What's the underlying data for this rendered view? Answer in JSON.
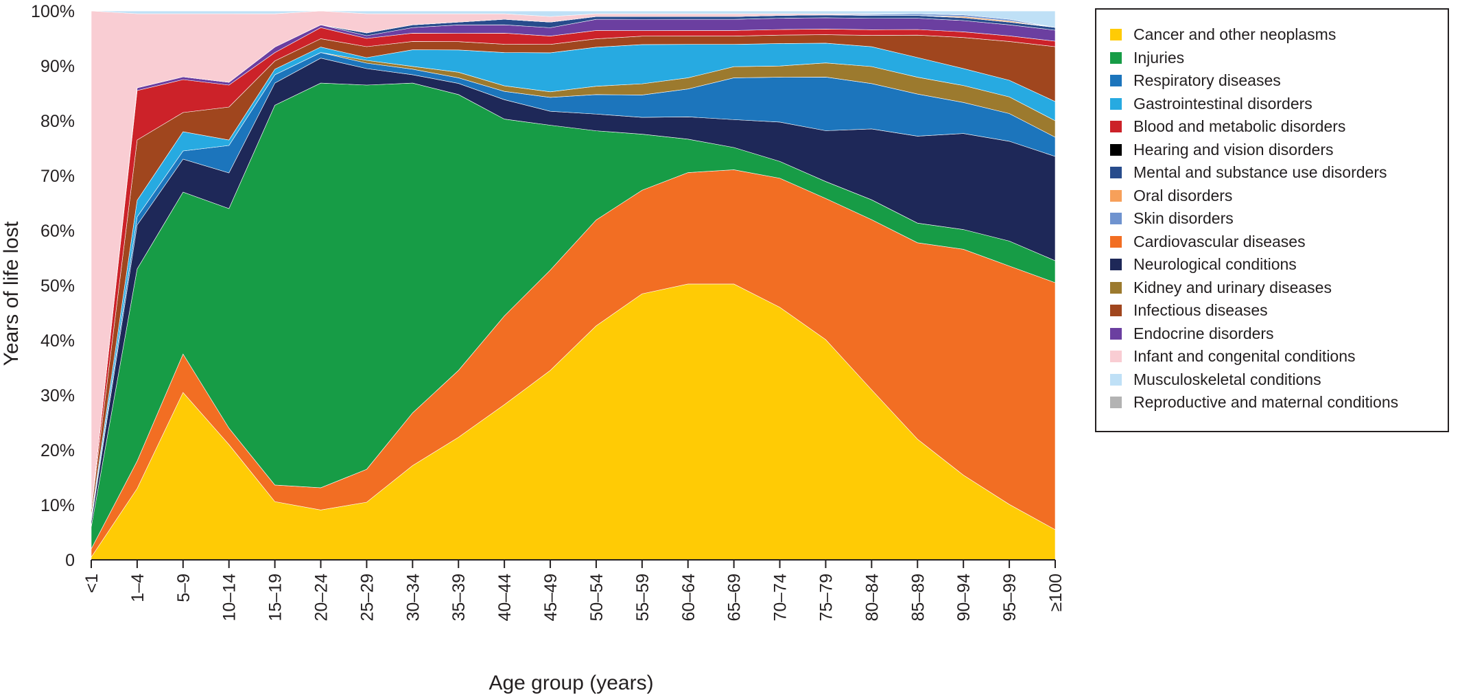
{
  "chart_data": {
    "type": "area",
    "stacked": true,
    "normalized": true,
    "xlabel": "Age group (years)",
    "ylabel": "Years of life lost",
    "ylim": [
      0,
      100
    ],
    "yticks": [
      0,
      10,
      20,
      30,
      40,
      50,
      60,
      70,
      80,
      90,
      100
    ],
    "ytick_labels": [
      "0",
      "10%",
      "20%",
      "30%",
      "40%",
      "50%",
      "60%",
      "70%",
      "80%",
      "90%",
      "100%"
    ],
    "categories": [
      "<1",
      "1–4",
      "5–9",
      "10–14",
      "15–19",
      "20–24",
      "25–29",
      "30–34",
      "35–39",
      "40–44",
      "45–49",
      "50–54",
      "55–59",
      "60–64",
      "65–69",
      "70–74",
      "75–79",
      "80–84",
      "85–89",
      "90–94",
      "95–99",
      "≥100"
    ],
    "grid": false,
    "legend_position": "right",
    "series": [
      {
        "name": "Cancer and other neoplasms",
        "color": "#ffcb05",
        "values": [
          0.5,
          13,
          30.5,
          21,
          10.5,
          9,
          10.5,
          17,
          22,
          28,
          34,
          42,
          47.5,
          49.5,
          49.5,
          45,
          39,
          30,
          21.5,
          15,
          10,
          5.5
        ]
      },
      {
        "name": "Cardiovascular diseases",
        "color": "#f26e23",
        "values": [
          1.5,
          5,
          7,
          3,
          3,
          4,
          6,
          9.5,
          12,
          16,
          18,
          19,
          18.5,
          20,
          20.5,
          23,
          25,
          30,
          35,
          40,
          43,
          45
        ]
      },
      {
        "name": "Injuries",
        "color": "#179c46",
        "values": [
          4,
          35,
          29.5,
          40,
          68.5,
          73,
          70,
          59.5,
          49.5,
          35.5,
          26,
          16,
          10,
          6,
          4,
          3,
          3,
          3.5,
          3.5,
          3.5,
          4.5,
          4
        ]
      },
      {
        "name": "Neurological conditions",
        "color": "#1e2858",
        "values": [
          1,
          8,
          6,
          6.5,
          4,
          4.5,
          3,
          1.5,
          2,
          3.5,
          2.5,
          3,
          3,
          4,
          5,
          7,
          9,
          12.5,
          15.5,
          17,
          18,
          19
        ]
      },
      {
        "name": "Respiratory diseases",
        "color": "#1c75bc",
        "values": [
          0.5,
          1.5,
          1.5,
          5,
          1.5,
          1,
          1,
          1,
          1,
          1.5,
          2.5,
          3.5,
          4,
          5,
          7.5,
          8,
          9.5,
          8,
          7.5,
          5.5,
          5,
          3.5
        ]
      },
      {
        "name": "Kidney and urinary diseases",
        "color": "#9c7a2e",
        "values": [
          0,
          0,
          0,
          0,
          0,
          0,
          0.5,
          0.5,
          1,
          1,
          1,
          1.5,
          2,
          2,
          2,
          2,
          2.5,
          3,
          3,
          3,
          3,
          3
        ]
      },
      {
        "name": "Gastrointestinal disorders",
        "color": "#27aae1",
        "values": [
          0.5,
          3,
          3.5,
          1,
          1,
          1,
          0.5,
          3,
          4,
          6,
          7,
          7,
          7,
          6,
          4,
          4,
          3.5,
          3.5,
          3.5,
          3,
          3,
          3.5
        ]
      },
      {
        "name": "Infectious diseases",
        "color": "#a0461e",
        "values": [
          1,
          11,
          3.5,
          6,
          1.5,
          1.5,
          2,
          1.5,
          1.5,
          1.5,
          1.5,
          1.5,
          1.5,
          1.5,
          1.5,
          1.5,
          1.5,
          2,
          4,
          5.5,
          7,
          10
        ]
      },
      {
        "name": "Blood and metabolic disorders",
        "color": "#cc2229",
        "values": [
          0,
          9,
          6,
          4,
          1.5,
          2,
          1.5,
          1.5,
          1.5,
          2,
          1.5,
          1.5,
          1,
          1,
          1,
          1,
          1,
          1,
          1,
          1,
          1,
          1
        ]
      },
      {
        "name": "Endocrine disorders",
        "color": "#6b3fa0",
        "values": [
          0,
          0.5,
          0.5,
          0.5,
          1,
          0.5,
          0.5,
          1,
          1.5,
          1.5,
          1.5,
          2,
          2,
          2,
          2,
          2,
          2,
          2,
          2,
          2,
          2,
          2
        ]
      },
      {
        "name": "Mental and substance use disorders",
        "color": "#284c8c",
        "values": [
          0,
          0,
          0,
          0,
          0,
          0,
          0.5,
          0.5,
          0.5,
          1,
          1,
          0.5,
          0.5,
          0.5,
          0.5,
          0.5,
          0.5,
          0.5,
          0.5,
          0.5,
          0.5,
          0.5
        ]
      },
      {
        "name": "Hearing and vision disorders",
        "color": "#000000",
        "values": [
          0,
          0,
          0,
          0,
          0,
          0,
          0,
          0,
          0,
          0,
          0,
          0,
          0,
          0,
          0,
          0,
          0,
          0,
          0,
          0,
          0,
          0
        ]
      },
      {
        "name": "Oral disorders",
        "color": "#f7a05a",
        "values": [
          0,
          0,
          0,
          0,
          0,
          0,
          0,
          0,
          0,
          0,
          0,
          0,
          0,
          0,
          0,
          0,
          0,
          0,
          0,
          0.2,
          0.2,
          0
        ]
      },
      {
        "name": "Skin disorders",
        "color": "#6f93cf",
        "values": [
          0,
          0,
          0,
          0,
          0,
          0,
          0,
          0,
          0,
          0,
          0,
          0,
          0,
          0,
          0,
          0,
          0,
          0.2,
          0.3,
          0.3,
          0.3,
          0
        ]
      },
      {
        "name": "Infant and congenital conditions",
        "color": "#f9cdd3",
        "values": [
          91,
          13.5,
          11.5,
          12.5,
          6,
          2.5,
          3.5,
          2,
          1.5,
          1,
          1,
          0.5,
          0.5,
          0.5,
          0.5,
          0.3,
          0.2,
          0.1,
          0,
          0,
          0,
          0
        ]
      },
      {
        "name": "Musculoskeletal conditions",
        "color": "#bfe0f6",
        "values": [
          0,
          0.5,
          0.5,
          0.5,
          0.5,
          0,
          0.5,
          0.5,
          0.5,
          0.5,
          1,
          0.5,
          0.5,
          0.5,
          0.5,
          0.5,
          0.5,
          0.5,
          0.5,
          0.7,
          1.5,
          3
        ]
      },
      {
        "name": "Reproductive and maternal conditions",
        "color": "#b3b3b3",
        "values": [
          0,
          0,
          0,
          0,
          0,
          0,
          0,
          0,
          0,
          0,
          0,
          0,
          0,
          0,
          0,
          0,
          0,
          0,
          0,
          0,
          0,
          0
        ]
      }
    ],
    "legend_order": [
      "Cancer and other neoplasms",
      "Injuries",
      "Respiratory diseases",
      "Gastrointestinal disorders",
      "Blood and metabolic disorders",
      "Hearing and vision disorders",
      "Mental and substance use disorders",
      "Oral disorders",
      "Skin disorders",
      "Cardiovascular diseases",
      "Neurological conditions",
      "Kidney and urinary diseases",
      "Infectious diseases",
      "Endocrine disorders",
      "Infant and congenital conditions",
      "Musculoskeletal conditions",
      "Reproductive and maternal conditions"
    ]
  }
}
